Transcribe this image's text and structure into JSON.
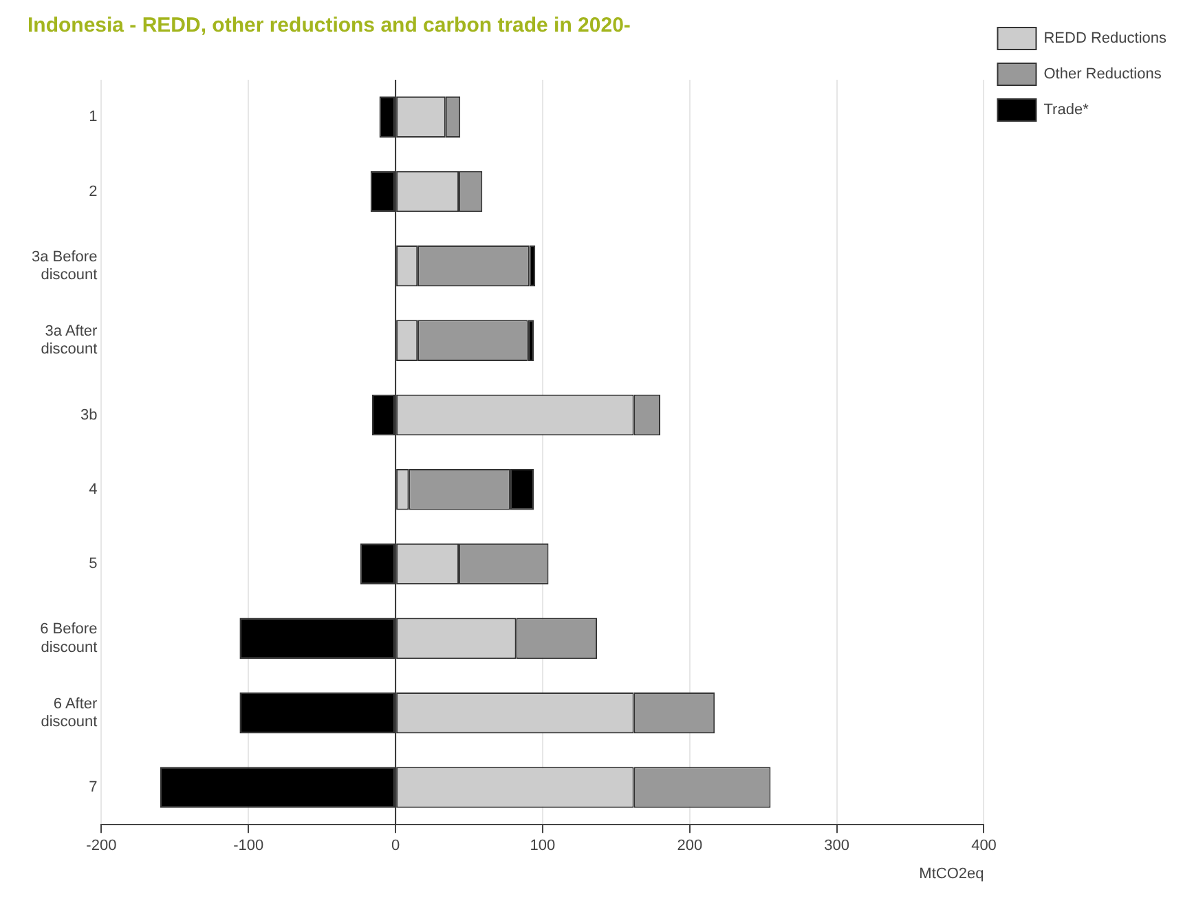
{
  "chart_data": {
    "type": "bar",
    "title": "Indonesia - REDD, other reductions and carbon trade in 2020-",
    "xlabel": "MtCO2eq",
    "orientation": "horizontal",
    "stacked": true,
    "categories": [
      "1",
      "2",
      "3a Before discount",
      "3a After discount",
      "3b",
      "4",
      "5",
      "6 Before discount",
      "6 After discount",
      "7"
    ],
    "series": [
      {
        "name": "REDD Reductions",
        "color": "#cccccc",
        "values": [
          34,
          43,
          15,
          15,
          162,
          9,
          43,
          82,
          162,
          162
        ]
      },
      {
        "name": "Other Reductions",
        "color": "#999999",
        "values": [
          10,
          16,
          76,
          75,
          18,
          69,
          61,
          55,
          55,
          93
        ]
      },
      {
        "name": "Trade*",
        "color": "#000000",
        "values": [
          -11,
          -17,
          4,
          4,
          -16,
          16,
          -24,
          -106,
          -106,
          -160
        ]
      }
    ],
    "xlim": [
      -200,
      400
    ],
    "xticks": [
      -200,
      -100,
      0,
      100,
      200,
      300,
      400
    ],
    "grid": "x",
    "legend": "top right"
  }
}
